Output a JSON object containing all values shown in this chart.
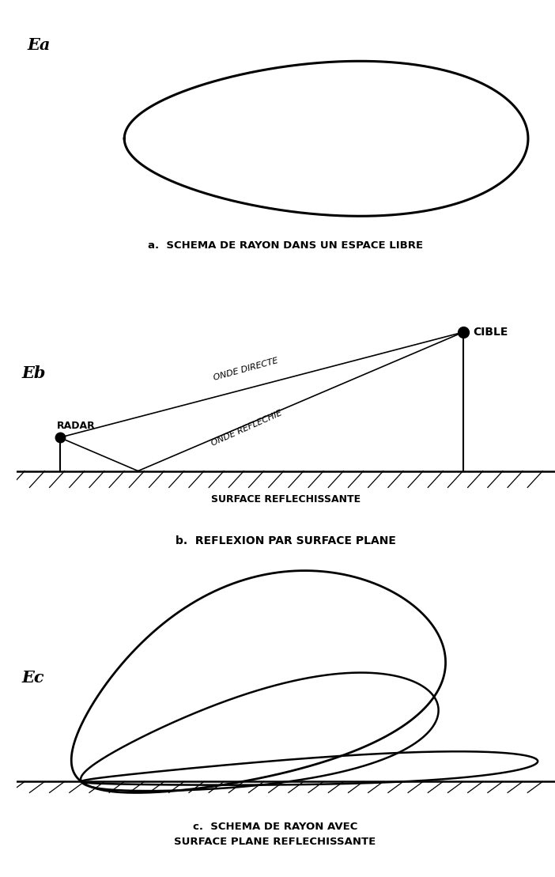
{
  "bg_color": "#ffffff",
  "line_color": "#000000",
  "label_a": "Ea",
  "label_b": "Eb",
  "label_c": "Ec",
  "caption_a": "a.  SCHEMA DE RAYON DANS UN ESPACE LIBRE",
  "caption_b": "b.  REFLEXION PAR SURFACE PLANE",
  "caption_c_line1": "c.  SCHEMA DE RAYON AVEC",
  "caption_c_line2": "SURFACE PLANE REFLECHISSANTE",
  "radar_label": "RADAR",
  "cible_label": "CIBLE",
  "onde_directe": "ONDE DIRECTE",
  "onde_reflechie": "ONDE REFLECHIE",
  "surface_label": "SURFACE REFLECHISSANTE",
  "panel_a_ylim": [
    -1.2,
    2.0
  ],
  "panel_b_ylim": [
    -1.2,
    4.0
  ],
  "panel_c_ylim": [
    -1.5,
    7.0
  ]
}
